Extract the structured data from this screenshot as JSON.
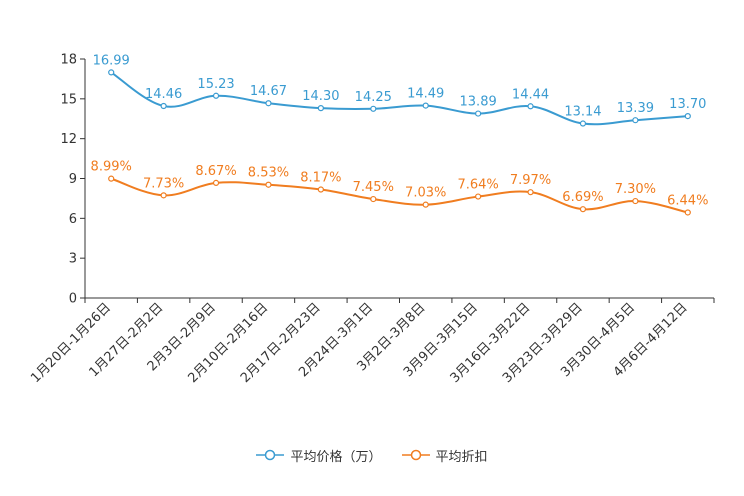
{
  "chart_data": {
    "type": "line",
    "title": "",
    "xlabel": "",
    "ylabel": "",
    "ylim": [
      0,
      18
    ],
    "yticks": [
      0,
      3,
      6,
      9,
      12,
      15,
      18
    ],
    "grid": false,
    "legend_position": "bottom-center",
    "categories": [
      "1月20日-1月26日",
      "1月27日-2月2日",
      "2月3日-2月9日",
      "2月10日-2月16日",
      "2月17日-2月23日",
      "2月24日-3月1日",
      "3月2日-3月8日",
      "3月9日-3月15日",
      "3月16日-3月22日",
      "3月23日-3月29日",
      "3月30日-4月5日",
      "4月6日-4月12日"
    ],
    "series": [
      {
        "name": "平均价格（万）",
        "color": "#3a9bd1",
        "values": [
          16.99,
          14.46,
          15.23,
          14.67,
          14.3,
          14.25,
          14.49,
          13.89,
          14.44,
          13.14,
          13.39,
          13.7
        ],
        "labels": [
          "16.99",
          "14.46",
          "15.23",
          "14.67",
          "14.30",
          "14.25",
          "14.49",
          "13.89",
          "14.44",
          "13.14",
          "13.39",
          "13.70"
        ]
      },
      {
        "name": "平均折扣",
        "color": "#f07d20",
        "values": [
          8.99,
          7.73,
          8.67,
          8.53,
          8.17,
          7.45,
          7.03,
          7.64,
          7.97,
          6.69,
          7.3,
          6.44
        ],
        "labels": [
          "8.99%",
          "7.73%",
          "8.67%",
          "8.53%",
          "8.17%",
          "7.45%",
          "7.03%",
          "7.64%",
          "7.97%",
          "6.69%",
          "7.30%",
          "6.44%"
        ]
      }
    ]
  }
}
